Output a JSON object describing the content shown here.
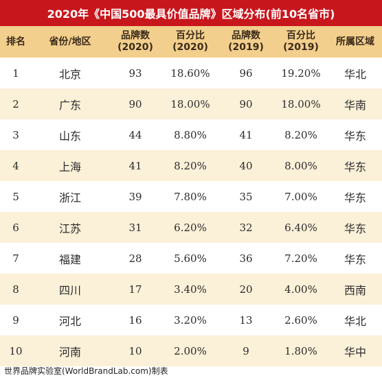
{
  "title": "2020年《中国500最具价值品牌》区域分布(前10名省市)",
  "headers": {
    "rank": "排名",
    "region": "省份/地区",
    "count2020_line1": "品牌数",
    "count2020_line2": "(2020)",
    "pct2020_line1": "百分比",
    "pct2020_line2": "(2020)",
    "count2019_line1": "品牌数",
    "count2019_line2": "(2019)",
    "pct2019_line1": "百分比",
    "pct2019_line2": "(2019)",
    "area": "所属区域"
  },
  "rows": [
    {
      "rank": "1",
      "region": "北京",
      "count2020": "93",
      "pct2020": "18.60%",
      "count2019": "96",
      "pct2019": "19.20%",
      "area": "华北"
    },
    {
      "rank": "2",
      "region": "广东",
      "count2020": "90",
      "pct2020": "18.00%",
      "count2019": "90",
      "pct2019": "18.00%",
      "area": "华南"
    },
    {
      "rank": "3",
      "region": "山东",
      "count2020": "44",
      "pct2020": "8.80%",
      "count2019": "41",
      "pct2019": "8.20%",
      "area": "华东"
    },
    {
      "rank": "4",
      "region": "上海",
      "count2020": "41",
      "pct2020": "8.20%",
      "count2019": "40",
      "pct2019": "8.00%",
      "area": "华东"
    },
    {
      "rank": "5",
      "region": "浙江",
      "count2020": "39",
      "pct2020": "7.80%",
      "count2019": "35",
      "pct2019": "7.00%",
      "area": "华东"
    },
    {
      "rank": "6",
      "region": "江苏",
      "count2020": "31",
      "pct2020": "6.20%",
      "count2019": "32",
      "pct2019": "6.40%",
      "area": "华东"
    },
    {
      "rank": "7",
      "region": "福建",
      "count2020": "28",
      "pct2020": "5.60%",
      "count2019": "36",
      "pct2019": "7.20%",
      "area": "华东"
    },
    {
      "rank": "8",
      "region": "四川",
      "count2020": "17",
      "pct2020": "3.40%",
      "count2019": "20",
      "pct2019": "4.00%",
      "area": "西南"
    },
    {
      "rank": "9",
      "region": "河北",
      "count2020": "16",
      "pct2020": "3.20%",
      "count2019": "13",
      "pct2019": "2.60%",
      "area": "华北"
    },
    {
      "rank": "10",
      "region": "河南",
      "count2020": "10",
      "pct2020": "2.00%",
      "count2019": "9",
      "pct2019": "1.80%",
      "area": "华中"
    }
  ],
  "footer": "世界品牌实验室(WorldBrandLab.com)制表",
  "colors": {
    "title_bg": "#c8161d",
    "header_bg": "#f2cf8c",
    "stripe_bg": "#fbf0d8"
  }
}
